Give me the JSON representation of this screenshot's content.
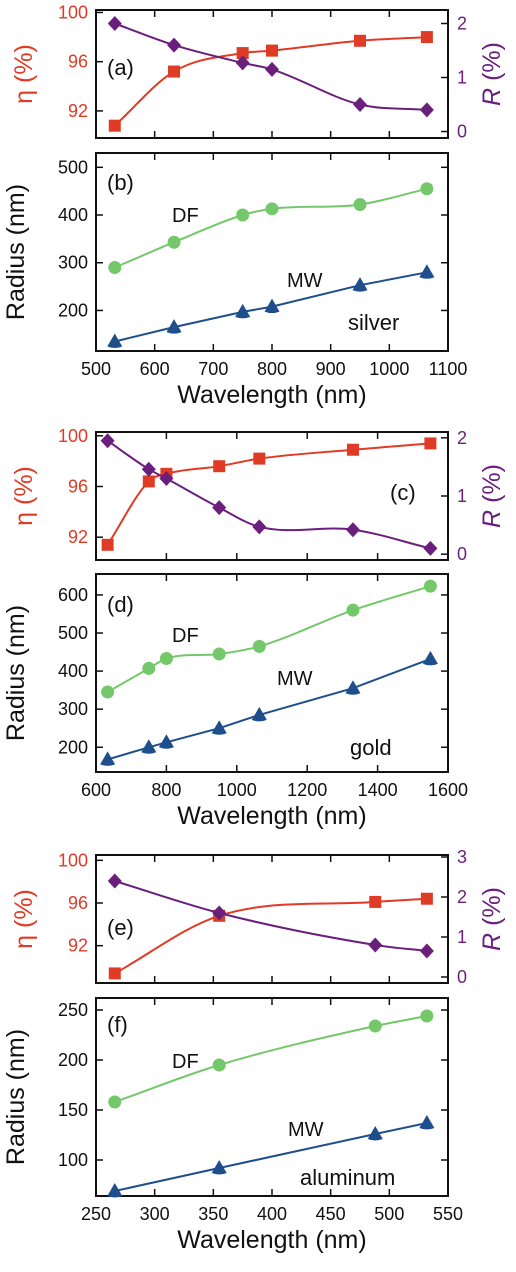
{
  "colors": {
    "eta": "#e03b24",
    "R": "#6b1f7c",
    "DF": "#74c86a",
    "MW": "#1f4e8c",
    "axis": "#111111"
  },
  "chart_data": [
    {
      "type": "line",
      "panel_label": "(a)",
      "x": [
        532,
        633,
        750,
        800,
        950,
        1064
      ],
      "series": [
        {
          "name": "η (%)",
          "axis": "left",
          "marker": "square",
          "values": [
            90.8,
            95.2,
            96.7,
            96.9,
            97.7,
            98.0
          ]
        },
        {
          "name": "R (%)",
          "axis": "right",
          "marker": "diamond",
          "values": [
            2.0,
            1.6,
            1.27,
            1.15,
            0.5,
            0.4
          ]
        }
      ],
      "ylabel": "η (%)",
      "y2label": "R (%)",
      "xlim": [
        500,
        1100
      ],
      "ylim": [
        89.8,
        100.2
      ],
      "y2lim": [
        -0.12,
        2.25
      ],
      "yticks": [
        92,
        96,
        100
      ],
      "y2ticks": [
        0,
        1,
        2
      ]
    },
    {
      "type": "line",
      "panel_label": "(b)",
      "annotation": "silver",
      "x": [
        532,
        633,
        750,
        800,
        950,
        1064
      ],
      "series": [
        {
          "name": "DF",
          "marker": "circle",
          "values": [
            290,
            343,
            400,
            413,
            422,
            455
          ]
        },
        {
          "name": "MW",
          "marker": "triangle",
          "values": [
            135,
            165,
            197,
            208,
            253,
            280
          ]
        }
      ],
      "xlabel": "Wavelength (nm)",
      "ylabel": "Radius (nm)",
      "xlim": [
        500,
        1100
      ],
      "ylim": [
        115,
        530
      ],
      "xticks": [
        500,
        600,
        700,
        800,
        900,
        1000,
        1100
      ],
      "yticks": [
        200,
        300,
        400,
        500
      ]
    },
    {
      "type": "line",
      "panel_label": "(c)",
      "x": [
        633,
        750,
        800,
        950,
        1064,
        1330,
        1550
      ],
      "series": [
        {
          "name": "η (%)",
          "axis": "left",
          "marker": "square",
          "values": [
            91.4,
            96.4,
            97.0,
            97.6,
            98.2,
            98.9,
            99.4
          ]
        },
        {
          "name": "R (%)",
          "axis": "right",
          "marker": "diamond",
          "values": [
            1.95,
            1.46,
            1.3,
            0.8,
            0.47,
            0.42,
            0.1
          ]
        }
      ],
      "ylabel": "η (%)",
      "y2label": "R (%)",
      "xlim": [
        600,
        1600
      ],
      "ylim": [
        90.2,
        100.3
      ],
      "y2lim": [
        -0.1,
        2.1
      ],
      "yticks": [
        92,
        96,
        100
      ],
      "y2ticks": [
        0,
        1,
        2
      ]
    },
    {
      "type": "line",
      "panel_label": "(d)",
      "annotation": "gold",
      "x": [
        633,
        750,
        800,
        950,
        1064,
        1330,
        1550
      ],
      "series": [
        {
          "name": "DF",
          "marker": "circle",
          "values": [
            345,
            407,
            433,
            445,
            465,
            560,
            623
          ]
        },
        {
          "name": "MW",
          "marker": "triangle",
          "values": [
            168,
            200,
            213,
            250,
            285,
            355,
            432
          ]
        }
      ],
      "xlabel": "Wavelength (nm)",
      "ylabel": "Radius (nm)",
      "xlim": [
        600,
        1600
      ],
      "ylim": [
        135,
        655
      ],
      "xticks": [
        600,
        800,
        1000,
        1200,
        1400,
        1600
      ],
      "yticks": [
        200,
        300,
        400,
        500,
        600
      ]
    },
    {
      "type": "line",
      "panel_label": "(e)",
      "x": [
        266,
        355,
        488,
        532
      ],
      "series": [
        {
          "name": "η (%)",
          "axis": "left",
          "marker": "square",
          "values": [
            89.4,
            94.8,
            96.1,
            96.4
          ]
        },
        {
          "name": "R (%)",
          "axis": "right",
          "marker": "diamond",
          "values": [
            2.4,
            1.6,
            0.8,
            0.65
          ]
        }
      ],
      "ylabel": "η (%)",
      "y2label": "R (%)",
      "xlim": [
        250,
        550
      ],
      "ylim": [
        88.5,
        100.5
      ],
      "y2lim": [
        -0.15,
        3.05
      ],
      "yticks": [
        92,
        96,
        100
      ],
      "y2ticks": [
        0,
        1,
        2,
        3
      ]
    },
    {
      "type": "line",
      "panel_label": "(f)",
      "annotation": "aluminum",
      "x": [
        266,
        355,
        488,
        532
      ],
      "series": [
        {
          "name": "DF",
          "marker": "circle",
          "values": [
            158,
            195,
            234,
            244
          ]
        },
        {
          "name": "MW",
          "marker": "triangle",
          "values": [
            69,
            92,
            126,
            137
          ]
        }
      ],
      "xlabel": "Wavelength (nm)",
      "ylabel": "Radius (nm)",
      "xlim": [
        250,
        550
      ],
      "ylim": [
        64,
        262
      ],
      "xticks": [
        250,
        300,
        350,
        400,
        450,
        500,
        550
      ],
      "yticks": [
        100,
        150,
        200,
        250
      ]
    }
  ]
}
